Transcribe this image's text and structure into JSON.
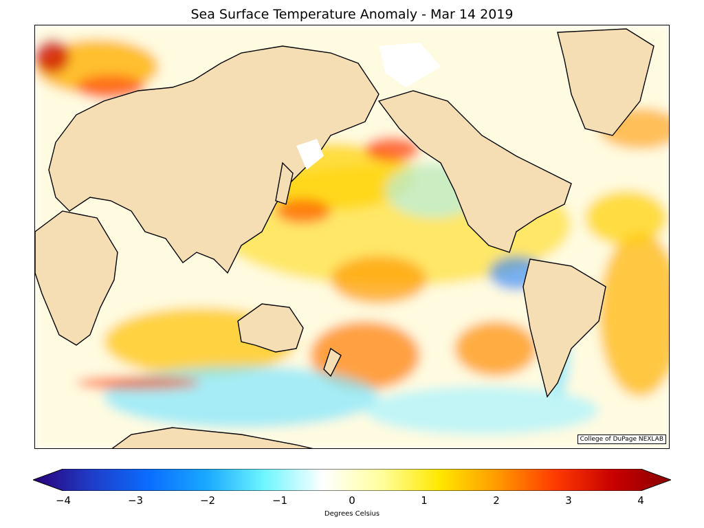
{
  "title": "Sea Surface Temperature Anomaly - Mar 14 2019",
  "credit": "College of DuPage NEXLAB",
  "colorbar": {
    "label": "Degrees Celsius",
    "min": -4,
    "max": 4,
    "ticks": [
      "−4",
      "−3",
      "−2",
      "−1",
      "0",
      "1",
      "2",
      "3",
      "4"
    ],
    "extend": "both",
    "stops": [
      "#2a0078",
      "#1f3cc7",
      "#0a6dff",
      "#1aa9ff",
      "#6ff6ff",
      "#ffffff",
      "#ffff9e",
      "#ffe800",
      "#ff9a00",
      "#ff3b00",
      "#c80000",
      "#8a0000"
    ]
  },
  "colors": {
    "land": "#f5deb3",
    "coast": "#000000",
    "warm": "#ffe84a",
    "hot": "#ff6a00",
    "cold": "#7fe6ff",
    "deep_cold": "#1f7fff"
  }
}
